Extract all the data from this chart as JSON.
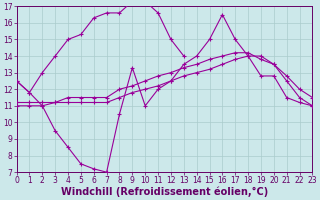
{
  "title": "",
  "xlabel": "Windchill (Refroidissement éolien,°C)",
  "ylabel": "",
  "bg_color": "#cce8ea",
  "line_color": "#990099",
  "grid_color": "#aacccc",
  "xmin": 0,
  "xmax": 23,
  "ymin": 7,
  "ymax": 17,
  "xticks": [
    0,
    1,
    2,
    3,
    4,
    5,
    6,
    7,
    8,
    9,
    10,
    11,
    12,
    13,
    14,
    15,
    16,
    17,
    18,
    19,
    20,
    21,
    22,
    23
  ],
  "yticks": [
    7,
    8,
    9,
    10,
    11,
    12,
    13,
    14,
    15,
    16,
    17
  ],
  "series": [
    {
      "x": [
        0,
        1,
        2,
        3,
        4,
        5,
        6,
        7,
        8,
        9,
        10,
        11,
        12,
        13,
        14,
        15,
        16,
        17,
        18,
        19,
        20,
        21,
        22,
        23
      ],
      "y": [
        12.5,
        11.8,
        13.0,
        14.0,
        15.0,
        15.3,
        16.3,
        16.6,
        16.6,
        17.3,
        17.3,
        16.6,
        15.0,
        14.0,
        null,
        null,
        null,
        null,
        null,
        null,
        null,
        null,
        null,
        null
      ]
    },
    {
      "x": [
        0,
        1,
        2,
        3,
        4,
        5,
        6,
        7,
        8,
        9,
        10,
        11,
        12,
        13,
        14,
        15,
        16,
        17,
        18,
        19,
        20,
        21,
        22,
        23
      ],
      "y": [
        12.5,
        11.8,
        11.0,
        9.5,
        8.5,
        7.5,
        7.2,
        7.0,
        10.5,
        13.3,
        11.0,
        12.0,
        12.5,
        13.5,
        14.0,
        15.0,
        16.5,
        15.0,
        14.0,
        12.8,
        12.8,
        11.5,
        11.2,
        11.0
      ]
    },
    {
      "x": [
        0,
        1,
        2,
        3,
        4,
        5,
        6,
        7,
        8,
        9,
        10,
        11,
        12,
        13,
        14,
        15,
        16,
        17,
        18,
        19,
        20,
        21,
        22,
        23
      ],
      "y": [
        11.0,
        11.0,
        11.0,
        11.2,
        11.5,
        11.5,
        11.5,
        11.5,
        12.0,
        12.2,
        12.5,
        12.8,
        13.0,
        13.3,
        13.5,
        13.8,
        14.0,
        14.2,
        14.2,
        13.8,
        13.5,
        12.5,
        11.5,
        11.0
      ]
    },
    {
      "x": [
        0,
        1,
        2,
        3,
        4,
        5,
        6,
        7,
        8,
        9,
        10,
        11,
        12,
        13,
        14,
        15,
        16,
        17,
        18,
        19,
        20,
        21,
        22,
        23
      ],
      "y": [
        11.2,
        11.2,
        11.2,
        11.2,
        11.2,
        11.2,
        11.2,
        11.2,
        11.5,
        11.8,
        12.0,
        12.2,
        12.5,
        12.8,
        13.0,
        13.2,
        13.5,
        13.8,
        14.0,
        14.0,
        13.5,
        12.8,
        12.0,
        11.5
      ]
    }
  ],
  "font_color": "#660066",
  "tick_fontsize": 5.5,
  "label_fontsize": 7
}
